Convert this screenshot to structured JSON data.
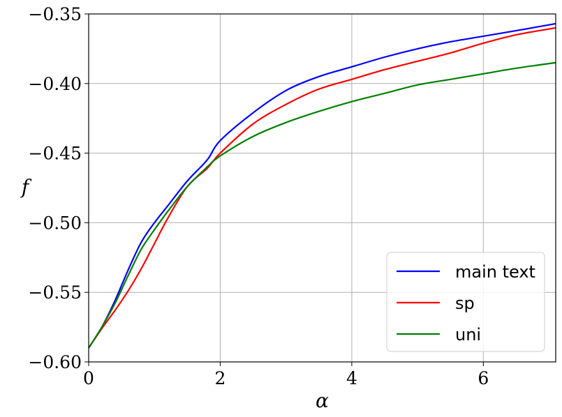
{
  "chart_data": {
    "type": "line",
    "xlabel": "α",
    "ylabel": "f",
    "xlim": [
      0,
      7.1
    ],
    "ylim": [
      -0.6,
      -0.35
    ],
    "xticks": [
      0,
      2,
      4,
      6
    ],
    "xtick_labels": [
      "0",
      "2",
      "4",
      "6"
    ],
    "yticks": [
      -0.6,
      -0.55,
      -0.5,
      -0.45,
      -0.4,
      -0.35
    ],
    "ytick_labels": [
      "−0.60",
      "−0.55",
      "−0.50",
      "−0.45",
      "−0.40",
      "−0.35"
    ],
    "grid": true,
    "legend_position": "lower-right",
    "series": [
      {
        "name": "main text",
        "color": "#0000ff",
        "x": [
          0,
          0.2,
          0.4,
          0.6,
          0.8,
          1.0,
          1.2,
          1.5,
          1.8,
          2.0,
          2.5,
          3.0,
          3.5,
          4.0,
          4.5,
          5.0,
          5.5,
          6.0,
          6.5,
          7.1
        ],
        "y": [
          -0.59,
          -0.575,
          -0.556,
          -0.534,
          -0.514,
          -0.5,
          -0.488,
          -0.47,
          -0.455,
          -0.441,
          -0.421,
          -0.405,
          -0.395,
          -0.388,
          -0.381,
          -0.375,
          -0.37,
          -0.366,
          -0.362,
          -0.357
        ]
      },
      {
        "name": "sp",
        "color": "#ff0000",
        "x": [
          0,
          0.2,
          0.4,
          0.6,
          0.8,
          1.0,
          1.2,
          1.5,
          1.8,
          2.0,
          2.5,
          3.0,
          3.5,
          4.0,
          4.5,
          5.0,
          5.5,
          6.0,
          6.5,
          7.1
        ],
        "y": [
          -0.59,
          -0.576,
          -0.563,
          -0.549,
          -0.533,
          -0.515,
          -0.497,
          -0.474,
          -0.461,
          -0.45,
          -0.429,
          -0.415,
          -0.404,
          -0.397,
          -0.39,
          -0.384,
          -0.378,
          -0.371,
          -0.365,
          -0.36
        ]
      },
      {
        "name": "uni",
        "color": "#008000",
        "x": [
          0,
          0.2,
          0.4,
          0.6,
          0.8,
          1.0,
          1.2,
          1.5,
          1.8,
          2.0,
          2.5,
          3.0,
          3.5,
          4.0,
          4.5,
          5.0,
          5.5,
          6.0,
          6.5,
          7.1
        ],
        "y": [
          -0.59,
          -0.575,
          -0.558,
          -0.538,
          -0.519,
          -0.505,
          -0.492,
          -0.474,
          -0.46,
          -0.452,
          -0.438,
          -0.428,
          -0.42,
          -0.413,
          -0.407,
          -0.401,
          -0.397,
          -0.393,
          -0.389,
          -0.385
        ]
      }
    ]
  }
}
